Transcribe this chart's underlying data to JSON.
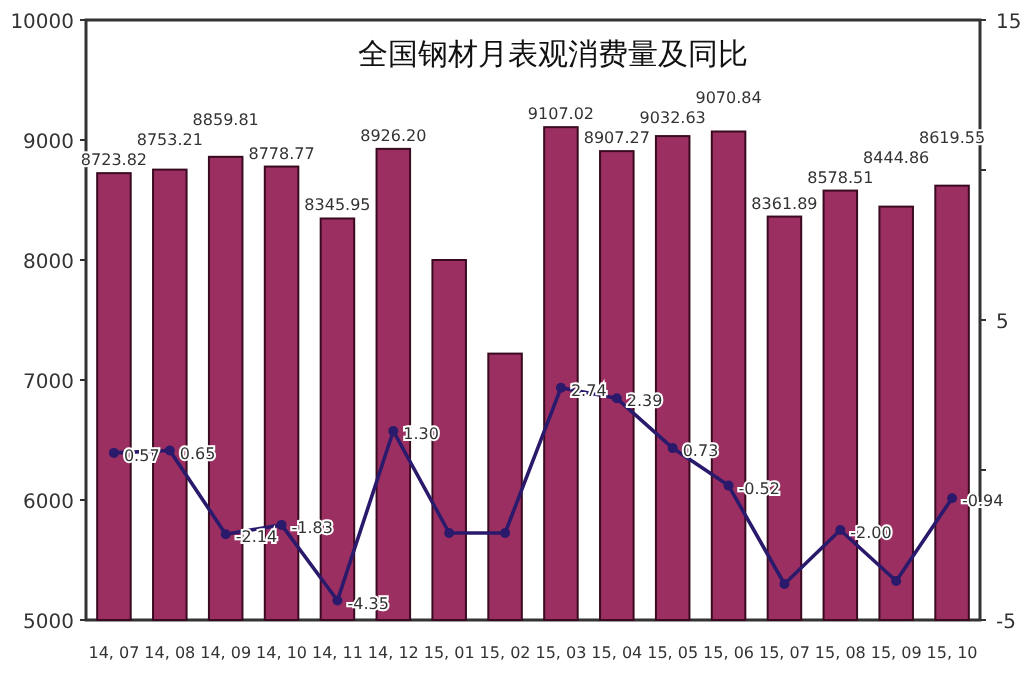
{
  "chart_data": {
    "type": "bar",
    "title": "全国钢材月表观消费量及同比",
    "categories": [
      "14, 07",
      "14, 08",
      "14, 09",
      "14, 10",
      "14, 11",
      "14, 12",
      "15, 01",
      "15, 02",
      "15, 03",
      "15, 04",
      "15, 05",
      "15, 06",
      "15, 07",
      "15, 08",
      "15, 09",
      "15, 10"
    ],
    "series": [
      {
        "color": "#9b2f62",
        "values": [
          8723.82,
          8753.21,
          8859.81,
          8778.77,
          8345.95,
          8926.2,
          8000,
          7220,
          9107.02,
          8907.27,
          9032.63,
          9070.84,
          8361.89,
          8578.51,
          8444.86,
          8619.55
        ],
        "value_labels": [
          "8723.82",
          "8753.21",
          "8859.81",
          "8778.77",
          "8345.95",
          "8926.20",
          null,
          null,
          "9107.02",
          "8907.27",
          "9032.63",
          "9070.84",
          "8361.89",
          "8578.51",
          "8444.86",
          "8619.55"
        ]
      },
      {
        "type": "line",
        "axis": "y2",
        "color": "#2b1a6b",
        "marker": "circle",
        "values": [
          0.57,
          0.65,
          -2.14,
          -1.83,
          -4.35,
          1.3,
          -2.1,
          -2.1,
          2.74,
          2.39,
          0.73,
          -0.52,
          -3.8,
          -2.0,
          -3.7,
          -0.94
        ],
        "value_labels": [
          "0.57",
          "0.65",
          "-2.14",
          "-1.83",
          "-4.35",
          "1.30",
          null,
          null,
          "2.74",
          "2.39",
          "0.73",
          "-0.52",
          null,
          "-2.00",
          null,
          "-0.94"
        ]
      }
    ],
    "ylim": [
      5000,
      10000
    ],
    "yticks": [
      5000,
      6000,
      7000,
      8000,
      9000,
      10000
    ],
    "y2lim": [
      -5,
      15
    ],
    "y2ticks": [
      15,
      {
        "value": 10,
        "label": null
      },
      5,
      {
        "value": 0,
        "label": null
      },
      -5
    ]
  }
}
